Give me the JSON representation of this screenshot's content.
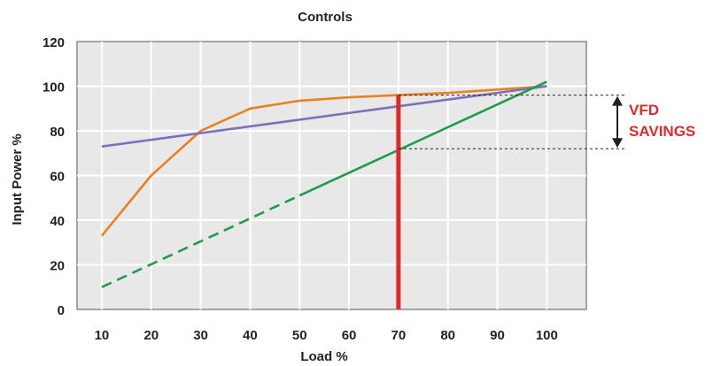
{
  "chart_data": {
    "type": "line",
    "title": "Controls",
    "xlabel": "Load %",
    "ylabel": "Input Power %",
    "xlim": [
      5,
      108
    ],
    "ylim": [
      0,
      120
    ],
    "x_ticks": [
      10,
      20,
      30,
      40,
      50,
      60,
      70,
      80,
      90,
      100
    ],
    "y_ticks": [
      0,
      20,
      40,
      60,
      80,
      100,
      120
    ],
    "grid": true,
    "legend": "none",
    "series": [
      {
        "color": "#e8821e",
        "style": "solid",
        "points": [
          [
            10,
            33
          ],
          [
            20,
            60
          ],
          [
            30,
            80
          ],
          [
            40,
            90
          ],
          [
            50,
            93.5
          ],
          [
            60,
            95
          ],
          [
            70,
            96
          ],
          [
            80,
            97
          ],
          [
            90,
            98.5
          ],
          [
            100,
            100
          ]
        ]
      },
      {
        "color": "#7b6fbe",
        "style": "solid",
        "points": [
          [
            10,
            73
          ],
          [
            100,
            100
          ]
        ]
      },
      {
        "color": "#1e9c4a",
        "style": "dashed",
        "points": [
          [
            10,
            10
          ],
          [
            50,
            51
          ]
        ]
      },
      {
        "color": "#1e9c4a",
        "style": "solid",
        "points": [
          [
            50,
            51
          ],
          [
            100,
            102
          ]
        ]
      }
    ],
    "marker": {
      "x": 70,
      "color": "#e02a2a",
      "upper": 96,
      "lower": 72
    },
    "annotation": {
      "text_line1": "VFD",
      "text_line2": "SAVINGS",
      "color": "#e02a2a"
    }
  }
}
